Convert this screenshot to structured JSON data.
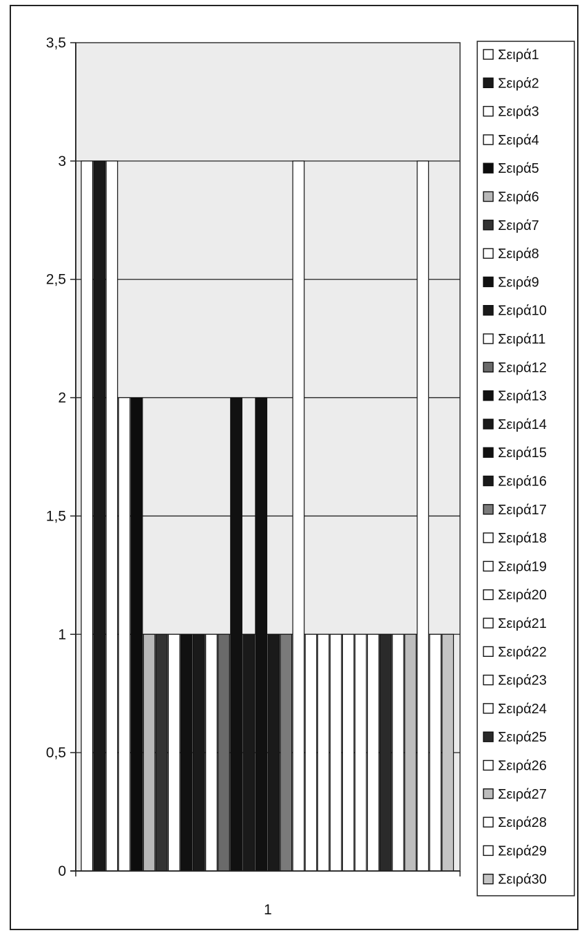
{
  "chart_data": {
    "type": "bar",
    "title": "",
    "xlabel": "",
    "ylabel": "",
    "categories": [
      "1"
    ],
    "ylim": [
      0,
      3.5
    ],
    "y_ticks": [
      "0",
      "0,5",
      "1",
      "1,5",
      "2",
      "2,5",
      "3",
      "3,5"
    ],
    "grid": true,
    "legend_position": "right",
    "series": [
      {
        "name": "Σειρά1",
        "values": [
          3
        ],
        "color": "#ffffff"
      },
      {
        "name": "Σειρά2",
        "values": [
          3
        ],
        "color": "#1a1a1a"
      },
      {
        "name": "Σειρά3",
        "values": [
          3
        ],
        "color": "#ffffff"
      },
      {
        "name": "Σειρά4",
        "values": [
          2
        ],
        "color": "#ffffff"
      },
      {
        "name": "Σειρά5",
        "values": [
          2
        ],
        "color": "#0d0d0d"
      },
      {
        "name": "Σειρά6",
        "values": [
          1
        ],
        "color": "#b8b8b8"
      },
      {
        "name": "Σειρά7",
        "values": [
          1
        ],
        "color": "#333333"
      },
      {
        "name": "Σειρά8",
        "values": [
          1
        ],
        "color": "#ffffff"
      },
      {
        "name": "Σειρά9",
        "values": [
          1
        ],
        "color": "#111111"
      },
      {
        "name": "Σειρά10",
        "values": [
          1
        ],
        "color": "#1a1a1a"
      },
      {
        "name": "Σειρά11",
        "values": [
          1
        ],
        "color": "#ffffff"
      },
      {
        "name": "Σειρά12",
        "values": [
          1
        ],
        "color": "#6a6a6a"
      },
      {
        "name": "Σειρά13",
        "values": [
          2
        ],
        "color": "#111111"
      },
      {
        "name": "Σειρά14",
        "values": [
          1
        ],
        "color": "#1a1a1a"
      },
      {
        "name": "Σειρά15",
        "values": [
          2
        ],
        "color": "#111111"
      },
      {
        "name": "Σειρά16",
        "values": [
          1
        ],
        "color": "#1a1a1a"
      },
      {
        "name": "Σειρά17",
        "values": [
          1
        ],
        "color": "#7a7a7a"
      },
      {
        "name": "Σειρά18",
        "values": [
          3
        ],
        "color": "#ffffff"
      },
      {
        "name": "Σειρά19",
        "values": [
          1
        ],
        "color": "#ffffff"
      },
      {
        "name": "Σειρά20",
        "values": [
          1
        ],
        "color": "#ffffff"
      },
      {
        "name": "Σειρά21",
        "values": [
          1
        ],
        "color": "#ffffff"
      },
      {
        "name": "Σειρά22",
        "values": [
          1
        ],
        "color": "#ffffff"
      },
      {
        "name": "Σειρά23",
        "values": [
          1
        ],
        "color": "#ffffff"
      },
      {
        "name": "Σειρά24",
        "values": [
          1
        ],
        "color": "#ffffff"
      },
      {
        "name": "Σειρά25",
        "values": [
          1
        ],
        "color": "#2a2a2a"
      },
      {
        "name": "Σειρά26",
        "values": [
          1
        ],
        "color": "#ffffff"
      },
      {
        "name": "Σειρά27",
        "values": [
          1
        ],
        "color": "#bdbdbd"
      },
      {
        "name": "Σειρά28",
        "values": [
          3
        ],
        "color": "#ffffff"
      },
      {
        "name": "Σειρά29",
        "values": [
          1
        ],
        "color": "#ffffff"
      },
      {
        "name": "Σειρά30",
        "values": [
          1
        ],
        "color": "#c4c4c4"
      }
    ],
    "plot_background": "#ececec",
    "page_background": "#ffffff"
  }
}
